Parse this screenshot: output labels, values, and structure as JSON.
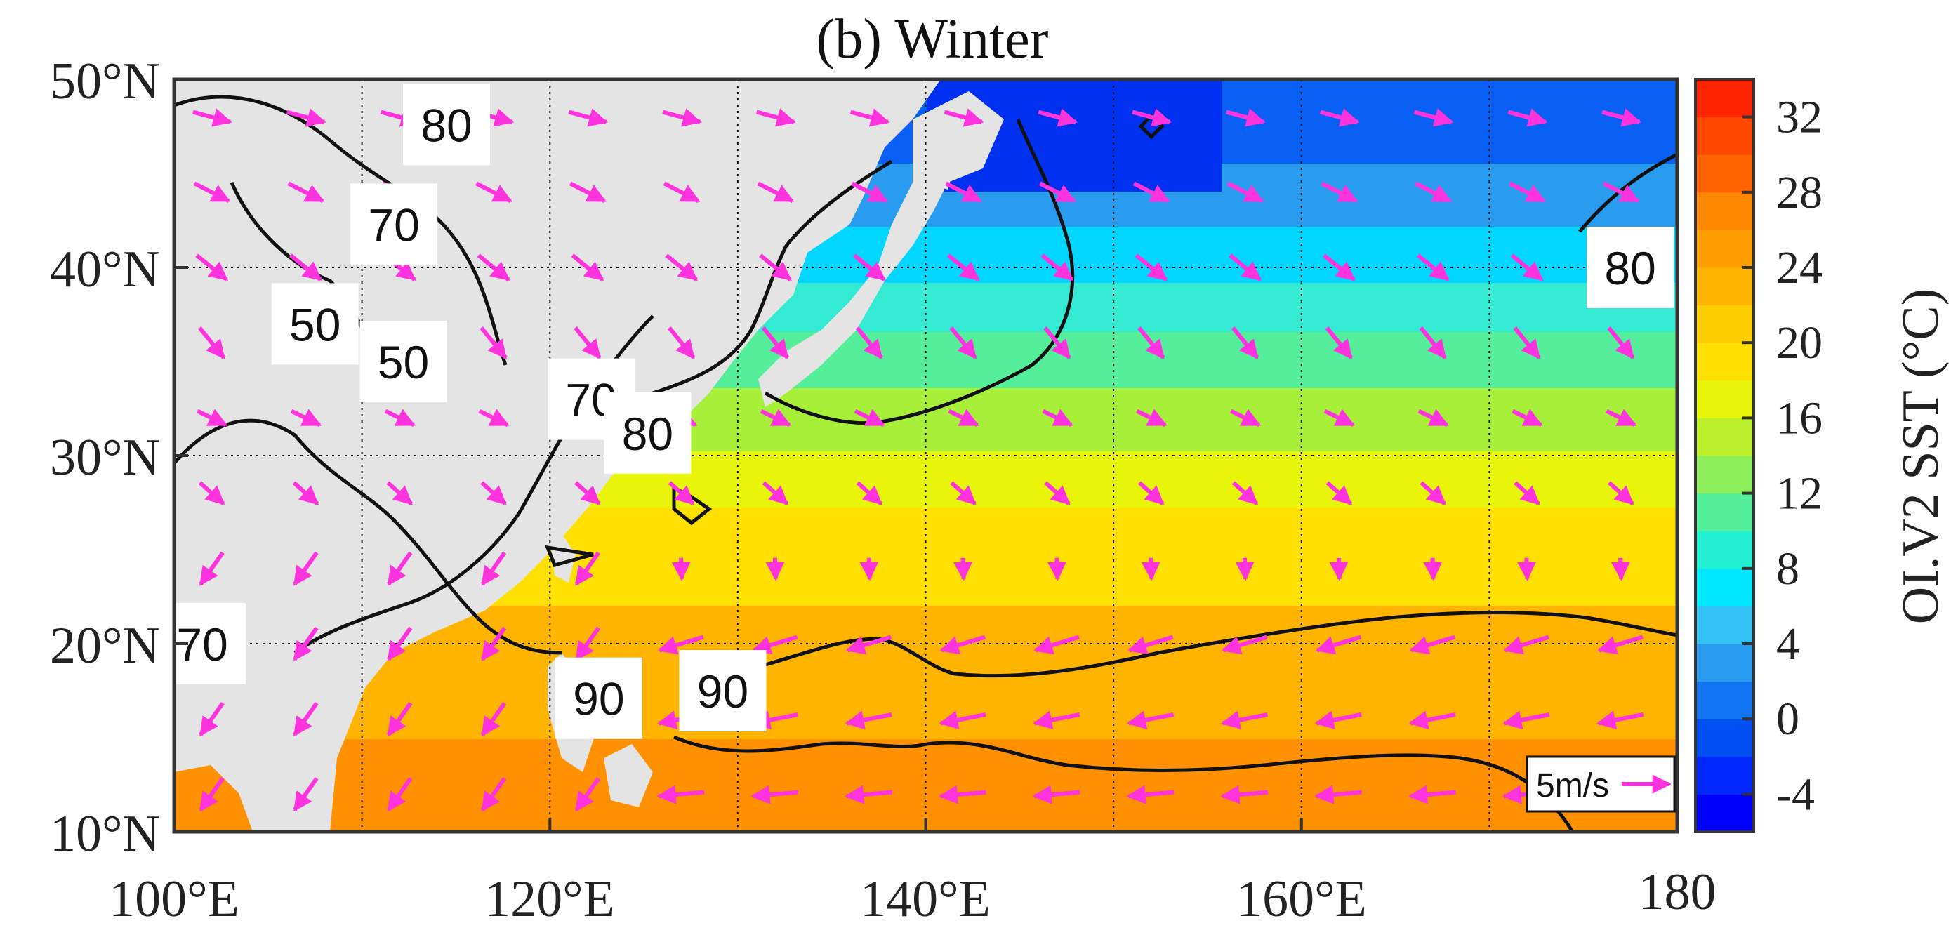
{
  "figure": {
    "title": "(b) Winter",
    "x_ticks": [
      "100°E",
      "120°E",
      "140°E",
      "160°E",
      "180"
    ],
    "y_ticks": [
      "50°N",
      "40°N",
      "30°N",
      "20°N",
      "10°N"
    ]
  },
  "map_data": {
    "lon_range": [
      100,
      180
    ],
    "lat_range": [
      10,
      50
    ],
    "contour_labels": [
      {
        "text": "80",
        "lon": 114.5,
        "lat": 47.6
      },
      {
        "text": "70",
        "lon": 111.7,
        "lat": 42.3
      },
      {
        "text": "50",
        "lon": 107.5,
        "lat": 37.0
      },
      {
        "text": "50",
        "lon": 112.2,
        "lat": 35.0
      },
      {
        "text": "70",
        "lon": 122.2,
        "lat": 33.0
      },
      {
        "text": "80",
        "lon": 125.2,
        "lat": 31.2
      },
      {
        "text": "80",
        "lon": 177.5,
        "lat": 40.0
      },
      {
        "text": "70",
        "lon": 101.5,
        "lat": 20.0
      },
      {
        "text": "90",
        "lon": 122.6,
        "lat": 17.1
      },
      {
        "text": "90",
        "lon": 129.2,
        "lat": 17.5
      }
    ],
    "vector_reference": {
      "label": "5m/s",
      "magnitude": 5,
      "units": "m/s"
    },
    "contour_color": "#111111",
    "vector_color": "#ff33dd",
    "land_color": "#e4e4e4"
  },
  "colorbar": {
    "label": "OI.V2 SST (°C)",
    "ticks": [
      "32",
      "28",
      "24",
      "20",
      "16",
      "12",
      "8",
      "4",
      "0",
      "-4"
    ],
    "range": [
      -6,
      34
    ],
    "colors": [
      "#0000ff",
      "#0028ff",
      "#0050f6",
      "#1276f2",
      "#2a9cf0",
      "#34c1f3",
      "#00e8ff",
      "#22f0d0",
      "#55ef9c",
      "#8cef5a",
      "#bcef2c",
      "#e8f408",
      "#ffe000",
      "#ffcd00",
      "#ffb400",
      "#ff9e00",
      "#ff8800",
      "#ff6400",
      "#ff4800",
      "#ff2400"
    ]
  }
}
